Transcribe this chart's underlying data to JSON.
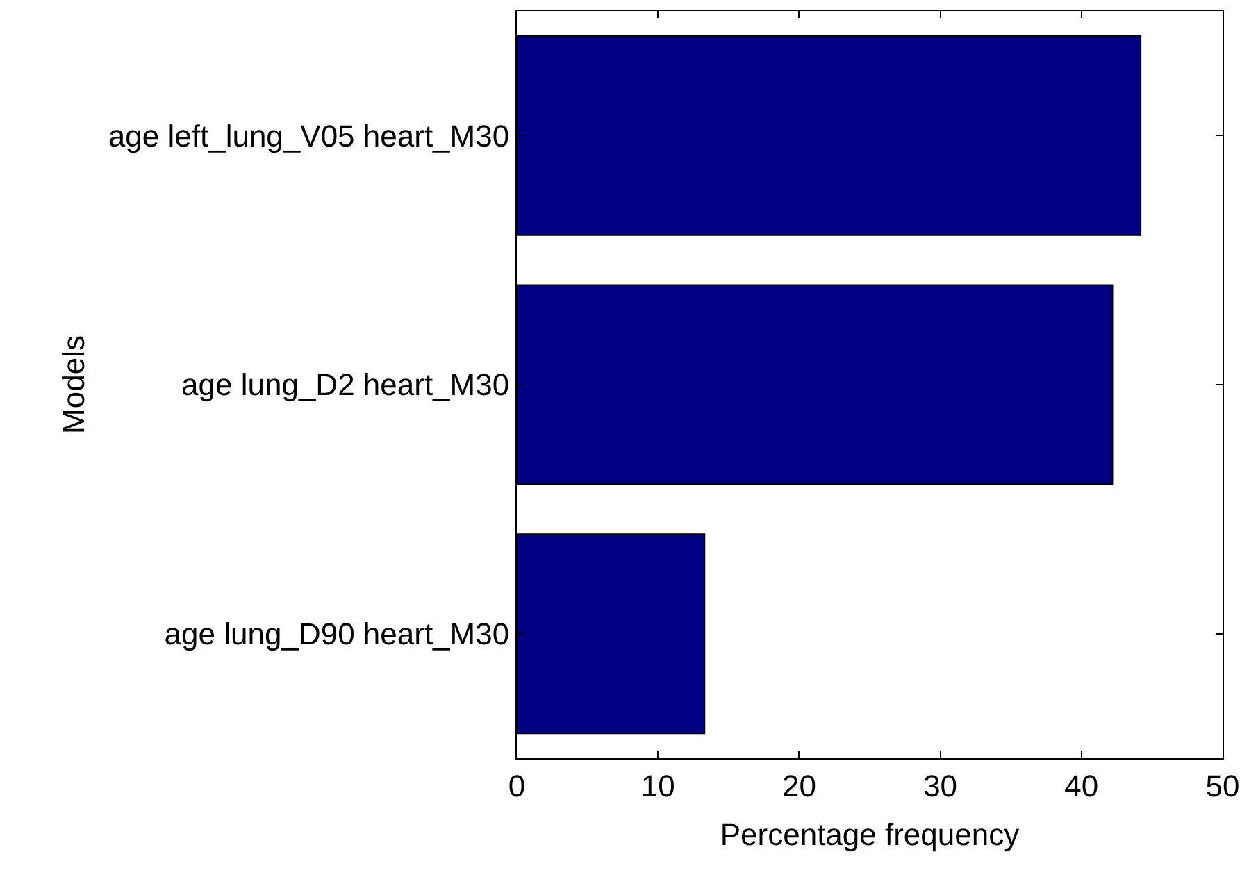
{
  "chart_data": {
    "type": "bar",
    "orientation": "horizontal",
    "xlabel": "Percentage frequency",
    "ylabel": "Models",
    "categories": [
      "age left_lung_V05 heart_M30",
      "age lung_D2 heart_M30",
      "age lung_D90 heart_M30"
    ],
    "values": [
      44.2,
      42.2,
      13.3
    ],
    "color": "#000080",
    "xlim": [
      0,
      50
    ],
    "xticks": [
      0,
      10,
      20,
      30,
      40,
      50
    ]
  }
}
